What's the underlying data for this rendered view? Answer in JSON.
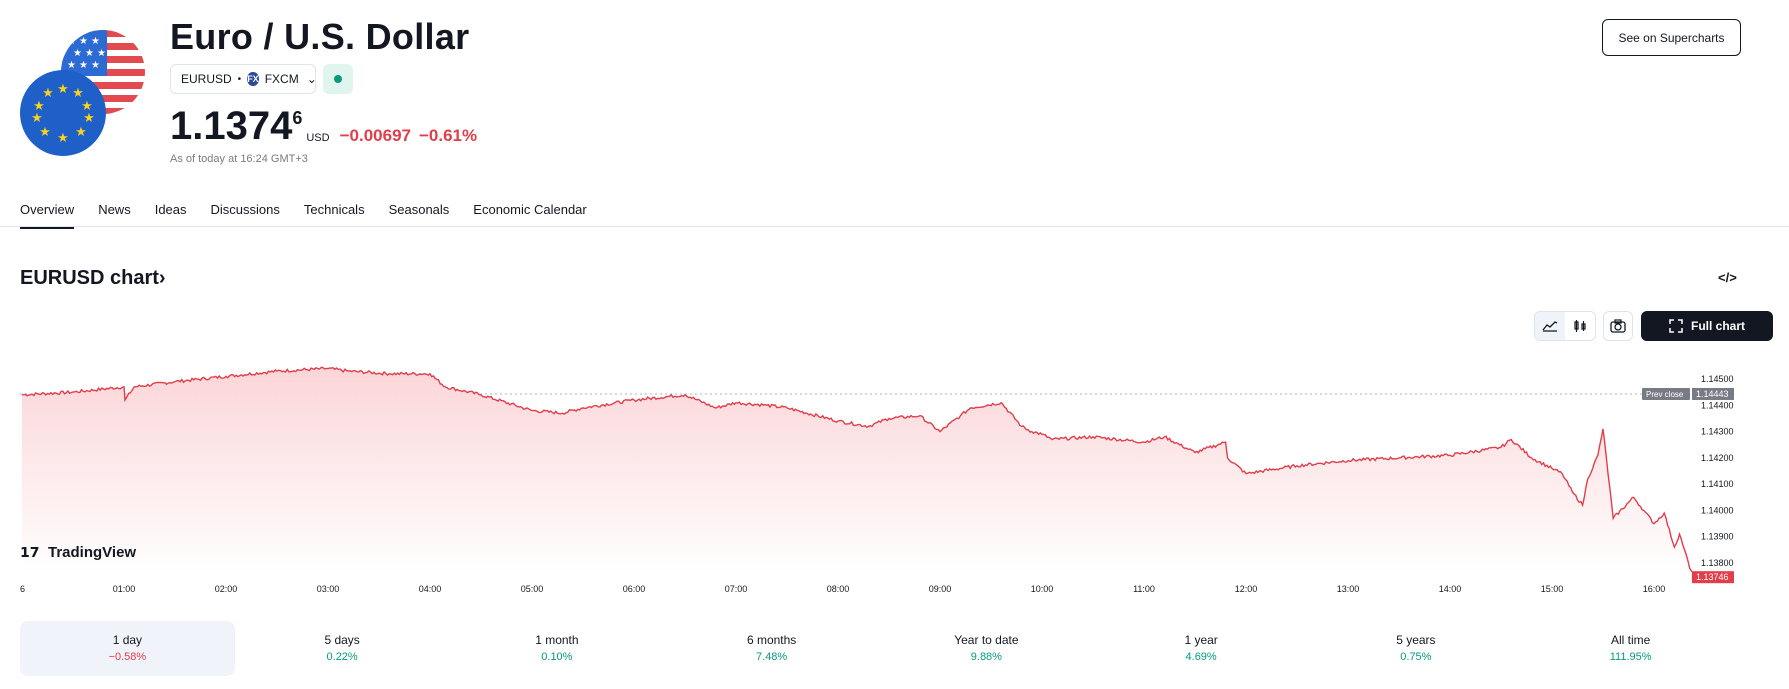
{
  "header": {
    "title": "Euro / U.S. Dollar",
    "symbol": "EURUSD",
    "exchange": "FXCM",
    "exchange_logo": "FX",
    "price_main": "1.1374",
    "price_sup": "6",
    "currency": "USD",
    "change": "−0.00697",
    "change_pct": "−0.61%",
    "as_of": "As of today at 16:24 GMT+3",
    "supercharts_label": "See on Supercharts",
    "market_status_color": "#089981"
  },
  "tabs": [
    {
      "label": "Overview",
      "active": true
    },
    {
      "label": "News"
    },
    {
      "label": "Ideas"
    },
    {
      "label": "Discussions"
    },
    {
      "label": "Technicals"
    },
    {
      "label": "Seasonals"
    },
    {
      "label": "Economic Calendar"
    }
  ],
  "chart_section": {
    "title": "EURUSD chart",
    "title_chevron": "›",
    "embed_label": "</>",
    "full_chart_label": "Full chart",
    "watermark": "TradingView"
  },
  "chart_data": {
    "type": "area",
    "title": "",
    "xlabel": "",
    "ylabel": "",
    "y_ticks": [
      "1.14500",
      "1.14400",
      "1.14300",
      "1.14200",
      "1.14100",
      "1.14000",
      "1.13900",
      "1.13800"
    ],
    "x_ticks": [
      "6",
      "01:00",
      "02:00",
      "03:00",
      "04:00",
      "05:00",
      "06:00",
      "07:00",
      "08:00",
      "09:00",
      "10:00",
      "11:00",
      "12:00",
      "13:00",
      "14:00",
      "15:00",
      "16:00"
    ],
    "ylim": [
      1.1372,
      1.14565
    ],
    "prev_close_label": "Prev close",
    "prev_close": "1.14443",
    "last_price": "1.13746",
    "line_color": "#e03e4a",
    "fill_color": "#fbd3d6",
    "series": [
      {
        "x": [
          0,
          0.5,
          1,
          1.01,
          1.1,
          1.5,
          2,
          2.5,
          3,
          3.2,
          3.6,
          4,
          4.15,
          4.5,
          5,
          5.3,
          5.5,
          6,
          6.5,
          6.8,
          7,
          7.3,
          7.5,
          8,
          8.3,
          8.5,
          8.8,
          9,
          9.2,
          9.3,
          9.6,
          9.8,
          9.9,
          10,
          10.1,
          10.5,
          11,
          11.2,
          11.5,
          11.8,
          11.82,
          12,
          12.5,
          13,
          13.5,
          14,
          14.5,
          14.6,
          14.8,
          15,
          15.1,
          15.2,
          15.3,
          15.35,
          15.45,
          15.5,
          15.6,
          15.8,
          15.9,
          16,
          16.1,
          16.2,
          16.25,
          16.3,
          16.35,
          16.4
        ],
        "y": [
          1.1444,
          1.1445,
          1.1447,
          1.1442,
          1.1447,
          1.1449,
          1.1451,
          1.1453,
          1.1454,
          1.1453,
          1.1452,
          1.1452,
          1.1447,
          1.1444,
          1.1438,
          1.1437,
          1.1439,
          1.1442,
          1.1444,
          1.1439,
          1.1441,
          1.144,
          1.1439,
          1.1434,
          1.1432,
          1.1435,
          1.1436,
          1.143,
          1.1436,
          1.1439,
          1.1441,
          1.1432,
          1.143,
          1.1429,
          1.1427,
          1.1428,
          1.1426,
          1.1428,
          1.1422,
          1.1426,
          1.142,
          1.1414,
          1.1417,
          1.1419,
          1.142,
          1.1421,
          1.1424,
          1.1427,
          1.142,
          1.1416,
          1.1414,
          1.1407,
          1.1402,
          1.1412,
          1.1421,
          1.1431,
          1.1397,
          1.1405,
          1.14,
          1.1395,
          1.1399,
          1.1386,
          1.1391,
          1.1385,
          1.1378,
          1.13746
        ]
      }
    ]
  },
  "periods": [
    {
      "label": "1 day",
      "value": "−0.58%",
      "sign": "neg",
      "active": true
    },
    {
      "label": "5 days",
      "value": "0.22%",
      "sign": "pos"
    },
    {
      "label": "1 month",
      "value": "0.10%",
      "sign": "pos"
    },
    {
      "label": "6 months",
      "value": "7.48%",
      "sign": "pos"
    },
    {
      "label": "Year to date",
      "value": "9.88%",
      "sign": "pos"
    },
    {
      "label": "1 year",
      "value": "4.69%",
      "sign": "pos"
    },
    {
      "label": "5 years",
      "value": "0.75%",
      "sign": "pos"
    },
    {
      "label": "All time",
      "value": "111.95%",
      "sign": "pos"
    }
  ]
}
